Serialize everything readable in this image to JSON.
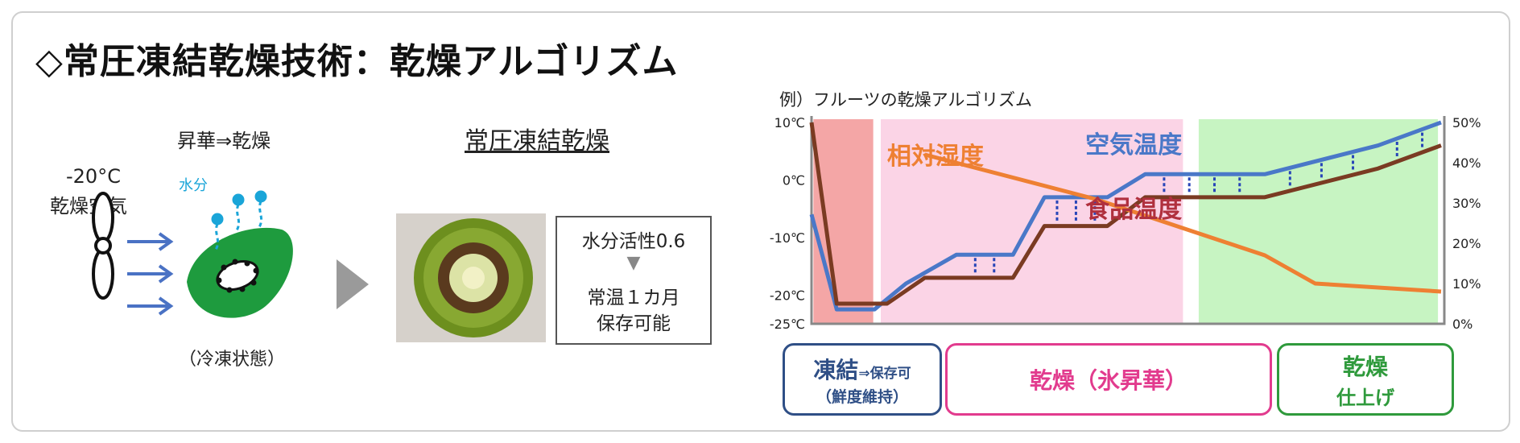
{
  "title": "◇常圧凍結乾燥技術：乾燥アルゴリズム",
  "left": {
    "temp_label": "-20°C",
    "air_label": "乾燥空気",
    "sublimation_label": "昇華⇒乾燥",
    "moisture_label": "水分",
    "frozen_label": "（冷凍状態）",
    "process_title": "常圧凍結乾燥",
    "water_activity": "水分活性0.6",
    "arrow_glyph": "▼",
    "storage_line1": "常温１カ月",
    "storage_line2": "保存可能"
  },
  "chart_header": "例）フルーツの乾燥アルゴリズム",
  "chart_data": {
    "type": "line",
    "title": "例）フルーツの乾燥アルゴリズム",
    "y_left_ticks": [
      "10℃",
      "0℃",
      "-10℃",
      "-20℃",
      "-25℃"
    ],
    "y_left_range": [
      -25,
      10
    ],
    "y_right_ticks": [
      "50%",
      "40%",
      "30%",
      "20%",
      "10%",
      "0%"
    ],
    "y_right_range": [
      0,
      50
    ],
    "x_range": [
      0,
      100
    ],
    "series": [
      {
        "name": "空気温度",
        "color": "#4a78c8",
        "axis": "left",
        "points": [
          [
            0,
            -6
          ],
          [
            4,
            -22.5
          ],
          [
            10,
            -22.5
          ],
          [
            15,
            -18
          ],
          [
            23,
            -13
          ],
          [
            32,
            -13
          ],
          [
            37,
            -3
          ],
          [
            47,
            -3
          ],
          [
            53,
            1
          ],
          [
            72,
            1
          ],
          [
            90,
            6
          ],
          [
            100,
            10
          ]
        ]
      },
      {
        "name": "食品温度",
        "color": "#7a3b22",
        "axis": "left",
        "points": [
          [
            0,
            10
          ],
          [
            4,
            -21.5
          ],
          [
            12,
            -21.5
          ],
          [
            18,
            -17
          ],
          [
            23,
            -17
          ],
          [
            32,
            -17
          ],
          [
            37,
            -8
          ],
          [
            47,
            -8
          ],
          [
            53,
            -3
          ],
          [
            72,
            -3
          ],
          [
            90,
            2
          ],
          [
            100,
            6
          ]
        ]
      },
      {
        "name": "相対湿度",
        "color": "#ee8033",
        "axis": "right",
        "points": [
          [
            18,
            42
          ],
          [
            45,
            31
          ],
          [
            72,
            17
          ],
          [
            80,
            10
          ],
          [
            100,
            8
          ]
        ]
      }
    ],
    "phases": [
      {
        "label_main": "凍結",
        "label_side": "⇒保存可",
        "label_sub": "（鮮度維持）",
        "color": "#f4a6a6",
        "border": "#2f4f86"
      },
      {
        "label_main": "乾燥（氷昇華）",
        "color": "#fbd4e6",
        "border": "#e23b8e"
      },
      {
        "label_main": "乾燥",
        "label_sub": "仕上げ",
        "color": "#c7f4c2",
        "border": "#2f9a3c"
      }
    ],
    "annotations": [
      "相対湿度",
      "空気温度",
      "食品温度"
    ],
    "grid": false,
    "legend": "inline"
  }
}
